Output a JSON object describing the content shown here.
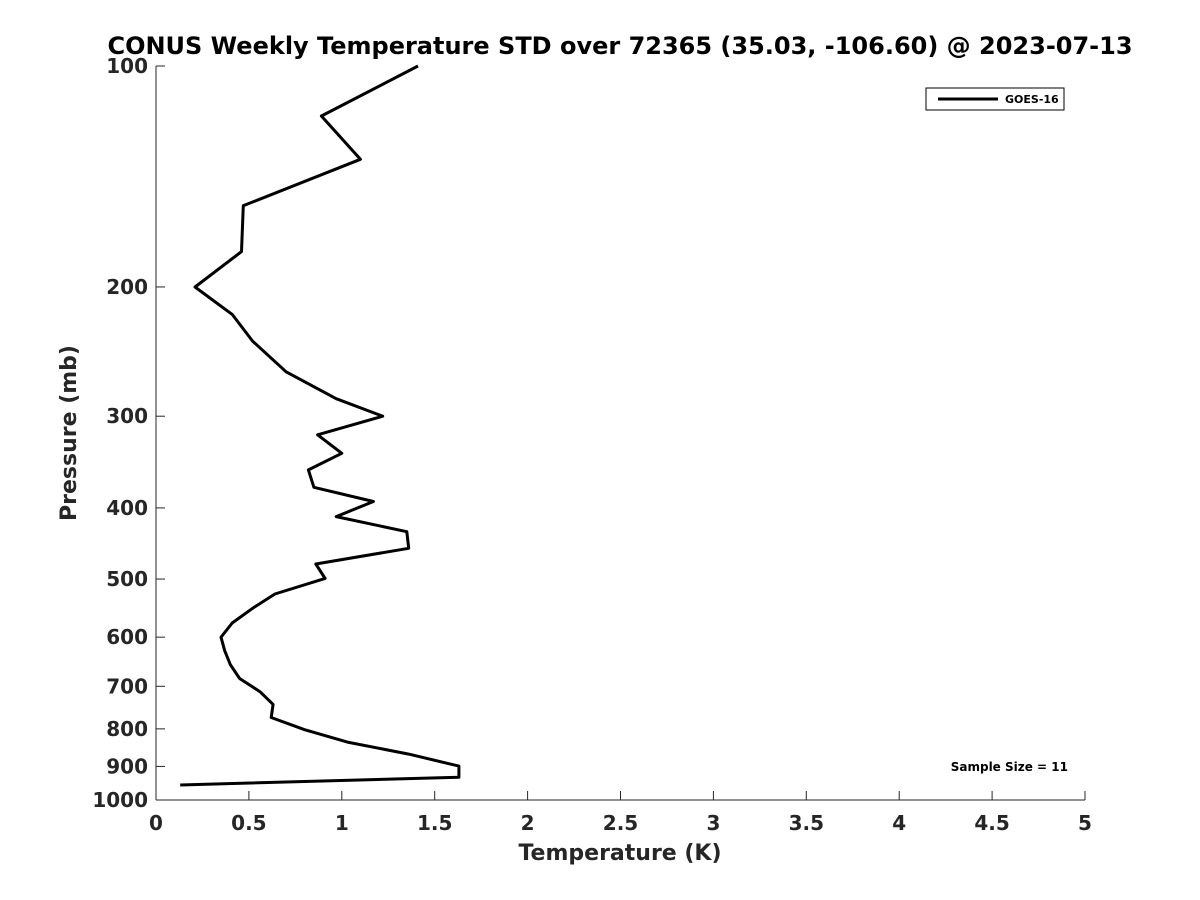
{
  "chart_data": {
    "type": "line",
    "title": "CONUS Weekly Temperature STD over 72365 (35.03, -106.60) @ 2023-07-13",
    "xlabel": "Temperature (K)",
    "ylabel": "Pressure (mb)",
    "xlim": [
      0,
      5
    ],
    "ylim": [
      100,
      1000
    ],
    "y_scale": "log",
    "y_reversed": true,
    "x_ticks": [
      "0",
      "0.5",
      "1",
      "1.5",
      "2",
      "2.5",
      "3",
      "3.5",
      "4",
      "4.5",
      "5"
    ],
    "y_ticks": [
      "100",
      "200",
      "300",
      "400",
      "500",
      "600",
      "700",
      "800",
      "900",
      "1000"
    ],
    "grid": false,
    "legend_position": "top-right",
    "series": [
      {
        "name": "GOES-16",
        "color": "#000000",
        "points": [
          [
            1.41,
            100
          ],
          [
            0.89,
            117
          ],
          [
            1.1,
            134
          ],
          [
            0.47,
            155
          ],
          [
            0.46,
            179
          ],
          [
            0.21,
            200
          ],
          [
            0.41,
            218
          ],
          [
            0.52,
            237
          ],
          [
            0.7,
            261
          ],
          [
            0.97,
            284
          ],
          [
            1.22,
            300
          ],
          [
            0.87,
            318
          ],
          [
            1.0,
            337
          ],
          [
            0.82,
            355
          ],
          [
            0.85,
            375
          ],
          [
            1.17,
            392
          ],
          [
            0.97,
            411
          ],
          [
            1.35,
            431
          ],
          [
            1.36,
            454
          ],
          [
            0.86,
            477
          ],
          [
            0.91,
            499
          ],
          [
            0.64,
            524
          ],
          [
            0.52,
            548
          ],
          [
            0.41,
            574
          ],
          [
            0.35,
            600
          ],
          [
            0.37,
            626
          ],
          [
            0.4,
            654
          ],
          [
            0.45,
            683
          ],
          [
            0.56,
            712
          ],
          [
            0.63,
            741
          ],
          [
            0.62,
            772
          ],
          [
            0.8,
            802
          ],
          [
            1.03,
            834
          ],
          [
            1.36,
            866
          ],
          [
            1.63,
            899
          ],
          [
            1.63,
            931
          ],
          [
            0.13,
            954
          ]
        ]
      }
    ],
    "annotation": "Sample Size = 11"
  }
}
